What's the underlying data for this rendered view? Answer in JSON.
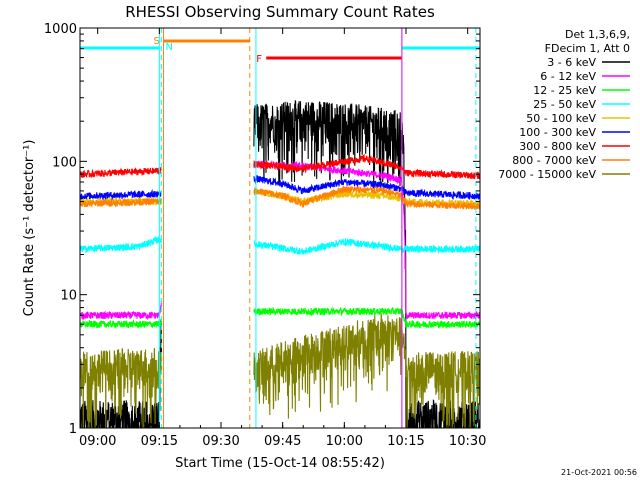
{
  "chart_data": {
    "type": "line",
    "title": "RHESSI Observing Summary Count Rates",
    "xlabel": "Start Time (15-Oct-14 08:55:42)",
    "ylabel": "Count Rate (s⁻¹ detector⁻¹)",
    "yscale": "log",
    "ylim": [
      1,
      1000
    ],
    "xlim": [
      "08:55:42",
      "10:33:00"
    ],
    "x_tick_labels": [
      "09:00",
      "09:15",
      "09:30",
      "09:45",
      "10:00",
      "10:15",
      "10:30"
    ],
    "y_tick_labels": [
      "1",
      "10",
      "100",
      "1000"
    ],
    "timestamp": "21-Oct-2021 00:56",
    "legend": {
      "placement": "right",
      "header": [
        "Det 1,3,6,9,",
        "FDecim 1, Att 0"
      ],
      "entries": [
        {
          "label": "3 - 6 keV",
          "color": "#000000"
        },
        {
          "label": "6 - 12 keV",
          "color": "#ff00ff"
        },
        {
          "label": "12 - 25 keV",
          "color": "#00ff00"
        },
        {
          "label": "25 - 50 keV",
          "color": "#00ffff"
        },
        {
          "label": "50 - 100 keV",
          "color": "#e8c000"
        },
        {
          "label": "100 - 300 keV",
          "color": "#0000ff"
        },
        {
          "label": "300 - 800 keV",
          "color": "#ff0000"
        },
        {
          "label": "800 - 7000 keV",
          "color": "#ff8000"
        },
        {
          "label": "7000 - 15000 keV",
          "color": "#808000"
        }
      ]
    },
    "flag_bars": [
      {
        "label": "",
        "color": "#00ffff",
        "start": "08:55:42",
        "end": "09:15:00",
        "position": "top"
      },
      {
        "label": "S",
        "color": "#ff8000",
        "start": "09:16:00",
        "end": "09:37:00",
        "position": "top"
      },
      {
        "label": "N",
        "color": "#00ffff",
        "start": "09:16:00",
        "end": "09:16:00",
        "position": "top"
      },
      {
        "label": "F",
        "color": "#ff0000",
        "start": "09:41:00",
        "end": "10:14:00",
        "position": "top"
      },
      {
        "label": "",
        "color": "#00ffff",
        "start": "10:14:00",
        "end": "10:33:00",
        "position": "top"
      }
    ],
    "data_gaps": [
      [
        "09:15:30",
        "09:38:00"
      ]
    ],
    "series": [
      {
        "name": "3 - 6 keV",
        "color": "#000000",
        "style": "noisy-low",
        "x": [
          "08:55:42",
          "09:15:00",
          "09:38:30",
          "09:50",
          "10:00",
          "10:05",
          "10:14",
          "10:15",
          "10:33"
        ],
        "values": [
          1.2,
          1.2,
          200,
          215,
          205,
          195,
          180,
          1.2,
          1.2
        ]
      },
      {
        "name": "6 - 12 keV",
        "color": "#ff00ff",
        "x": [
          "08:55:42",
          "09:15:00",
          "09:38:30",
          "09:50",
          "10:00",
          "10:10",
          "10:14",
          "10:15",
          "10:33"
        ],
        "values": [
          7,
          7,
          95,
          92,
          85,
          78,
          72,
          7,
          7
        ]
      },
      {
        "name": "12 - 25 keV",
        "color": "#00ff00",
        "x": [
          "08:55:42",
          "09:15:00",
          "09:38:30",
          "09:50",
          "10:00",
          "10:14",
          "10:15",
          "10:33"
        ],
        "values": [
          6,
          6,
          7.5,
          7.5,
          7.5,
          7.5,
          6,
          6
        ]
      },
      {
        "name": "25 - 50 keV",
        "color": "#00ffff",
        "x": [
          "08:55:42",
          "09:10",
          "09:15:00",
          "09:38:30",
          "09:50",
          "10:00",
          "10:14",
          "10:15",
          "10:33"
        ],
        "values": [
          22,
          23,
          26,
          24,
          21,
          25,
          22,
          22,
          22
        ]
      },
      {
        "name": "50 - 100 keV",
        "color": "#e8c000",
        "x": [
          "08:55:42",
          "09:15:00",
          "09:38:30",
          "09:45",
          "09:50",
          "10:00",
          "10:10",
          "10:14",
          "10:15",
          "10:33"
        ],
        "values": [
          50,
          50,
          60,
          55,
          50,
          57,
          55,
          52,
          50,
          48
        ]
      },
      {
        "name": "100 - 300 keV",
        "color": "#0000ff",
        "x": [
          "08:55:42",
          "09:15:00",
          "09:38:30",
          "09:45",
          "09:50",
          "10:00",
          "10:10",
          "10:14",
          "10:15",
          "10:33"
        ],
        "values": [
          55,
          57,
          74,
          68,
          60,
          70,
          66,
          62,
          58,
          55
        ]
      },
      {
        "name": "300 - 800 keV",
        "color": "#ff0000",
        "x": [
          "08:55:42",
          "09:15:00",
          "09:38:30",
          "09:50",
          "10:00",
          "10:05",
          "10:14",
          "10:15",
          "10:33"
        ],
        "values": [
          80,
          85,
          95,
          88,
          100,
          105,
          90,
          82,
          78
        ]
      },
      {
        "name": "800 - 7000 keV",
        "color": "#ff8000",
        "x": [
          "08:55:42",
          "09:15:00",
          "09:38:30",
          "09:45",
          "09:50",
          "10:00",
          "10:10",
          "10:14",
          "10:15",
          "10:33"
        ],
        "values": [
          48,
          50,
          60,
          55,
          48,
          62,
          60,
          55,
          48,
          46
        ]
      },
      {
        "name": "7000 - 15000 keV",
        "color": "#808000",
        "style": "noisy-low",
        "x": [
          "08:55:42",
          "09:15:00",
          "09:38:30",
          "10:00",
          "10:10",
          "10:14",
          "10:15",
          "10:33"
        ],
        "values": [
          2.8,
          3,
          2.8,
          4.5,
          5.5,
          5,
          2.8,
          2.8
        ]
      }
    ]
  }
}
